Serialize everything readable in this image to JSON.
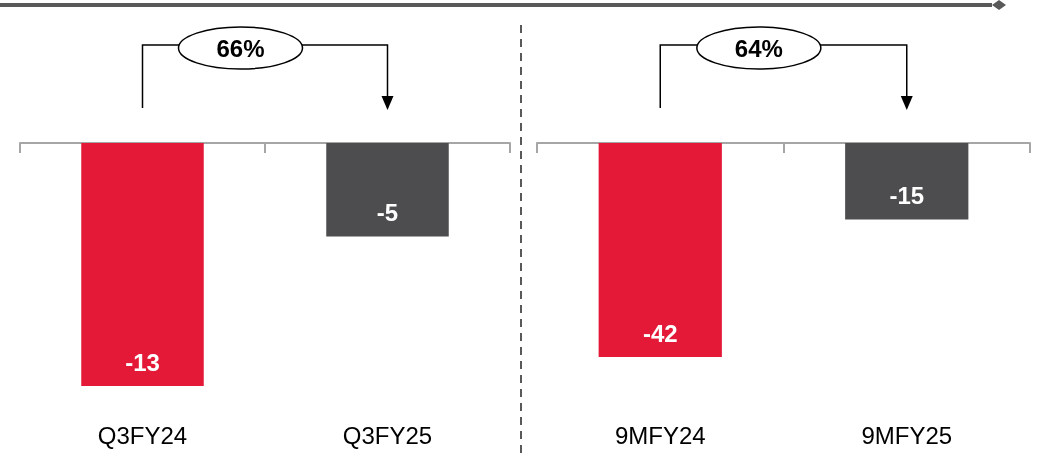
{
  "chart_data": [
    {
      "type": "bar",
      "categories": [
        "Q3FY24",
        "Q3FY25"
      ],
      "values": [
        -13,
        -5
      ],
      "colors": [
        "#e31937",
        "#4d4d4f"
      ],
      "data_labels": true,
      "annotations": [
        "66%"
      ]
    },
    {
      "type": "bar",
      "categories": [
        "9MFY24",
        "9MFY25"
      ],
      "values": [
        -42,
        -15
      ],
      "colors": [
        "#e31937",
        "#4d4d4f"
      ],
      "data_labels": true,
      "annotations": [
        "64%"
      ]
    }
  ]
}
